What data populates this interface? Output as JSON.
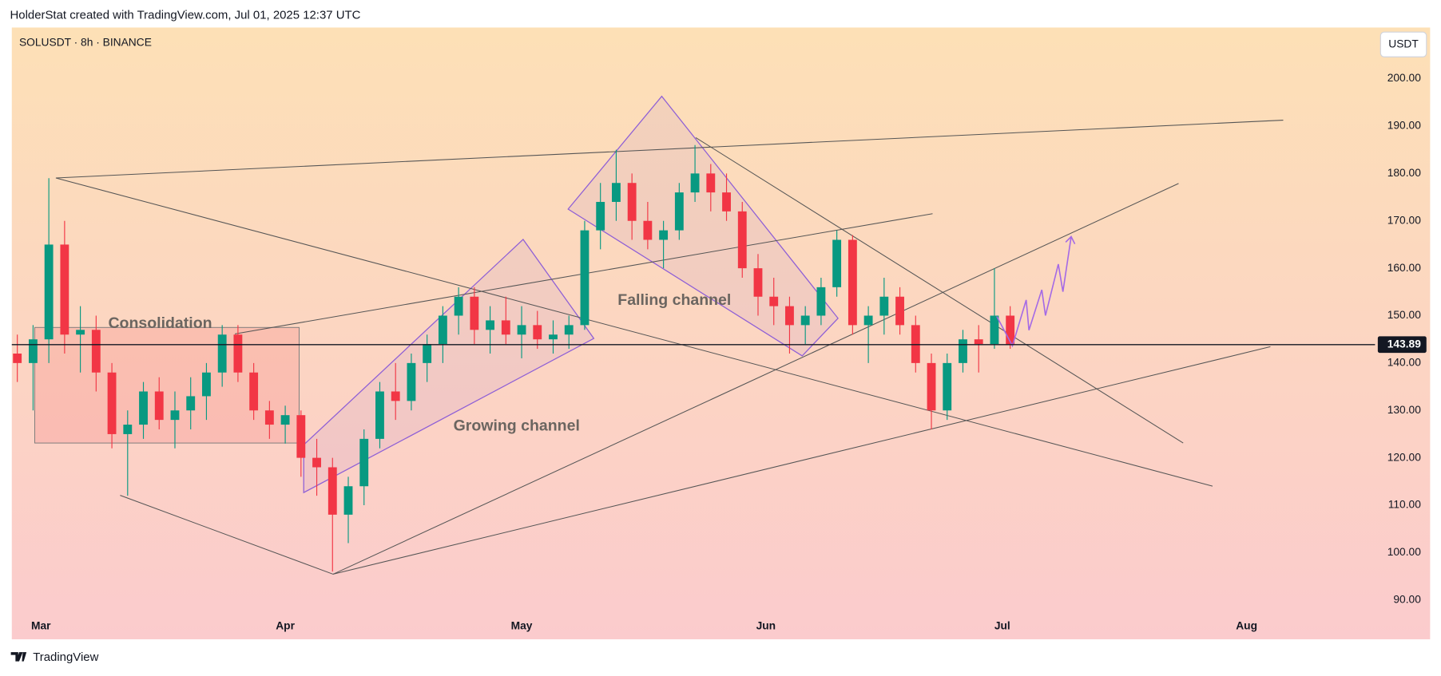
{
  "header": "HolderStat created with TradingView.com, Jul 01, 2025 12:37 UTC",
  "brand": "TradingView",
  "chart_data": {
    "type": "candlestick",
    "title": "SOLUSDT · 8h · BINANCE",
    "currency": "USDT",
    "up_color": "#089981",
    "down_color": "#f23645",
    "x": [
      -3,
      -1,
      1,
      3,
      5,
      7,
      9,
      11,
      13,
      15,
      17,
      19,
      21,
      23,
      25,
      27,
      29,
      31,
      33,
      35,
      37,
      39,
      41,
      43,
      45,
      47,
      49,
      51,
      53,
      55,
      57,
      59,
      61,
      63,
      65,
      67,
      69,
      71,
      73,
      75,
      77,
      79,
      81,
      83,
      85,
      87,
      89,
      91,
      93,
      95,
      97,
      99,
      101,
      103,
      105,
      107,
      109,
      111,
      113,
      115,
      117,
      119,
      121,
      123
    ],
    "open": [
      142,
      140,
      145,
      165,
      146,
      147,
      138,
      125,
      127,
      134,
      128,
      130,
      133,
      138,
      146,
      138,
      130,
      127,
      129,
      120,
      118,
      108,
      114,
      124,
      134,
      132,
      140,
      144,
      150,
      154,
      147,
      149,
      146,
      148,
      145,
      146,
      148,
      168,
      174,
      178,
      170,
      166,
      168,
      176,
      180,
      176,
      172,
      160,
      154,
      152,
      148,
      150,
      156,
      166,
      148,
      150,
      154,
      148,
      140,
      130,
      140,
      145,
      144,
      150
    ],
    "high": [
      146,
      148,
      179,
      170,
      152,
      150,
      140,
      130,
      136,
      137,
      134,
      137,
      140,
      148,
      148,
      140,
      132,
      131,
      130,
      124,
      120,
      116,
      126,
      136,
      140,
      142,
      146,
      152,
      156,
      156,
      152,
      154,
      152,
      151,
      149,
      150,
      170,
      178,
      185,
      180,
      174,
      170,
      178,
      186,
      182,
      180,
      174,
      163,
      158,
      154,
      152,
      158,
      168,
      167,
      152,
      158,
      156,
      150,
      142,
      142,
      147,
      148,
      160,
      152
    ],
    "low": [
      136,
      130,
      140,
      142,
      138,
      134,
      122,
      112,
      124,
      126,
      122,
      126,
      128,
      135,
      136,
      128,
      124,
      123,
      116,
      112,
      96,
      102,
      110,
      122,
      128,
      130,
      136,
      140,
      146,
      144,
      142,
      144,
      141,
      143,
      142,
      143,
      147,
      164,
      170,
      166,
      164,
      160,
      166,
      174,
      172,
      170,
      158,
      150,
      148,
      142,
      144,
      148,
      154,
      146,
      140,
      146,
      146,
      138,
      126,
      128,
      138,
      138,
      143,
      143
    ],
    "close": [
      140,
      145,
      165,
      146,
      147,
      138,
      125,
      127,
      134,
      128,
      130,
      133,
      138,
      146,
      138,
      130,
      127,
      129,
      120,
      118,
      108,
      114,
      124,
      134,
      132,
      140,
      144,
      150,
      154,
      147,
      149,
      146,
      148,
      145,
      146,
      148,
      168,
      174,
      178,
      170,
      166,
      168,
      176,
      180,
      176,
      172,
      160,
      154,
      152,
      148,
      150,
      156,
      166,
      148,
      150,
      154,
      148,
      140,
      130,
      140,
      145,
      144,
      150,
      143.89
    ],
    "last_price": 143.89,
    "xlim": [
      -3.7,
      169.3
    ],
    "xticks": [
      {
        "value": 0,
        "label": "Mar"
      },
      {
        "value": 31,
        "label": "Apr"
      },
      {
        "value": 61,
        "label": "May"
      },
      {
        "value": 92,
        "label": "Jun"
      },
      {
        "value": 122,
        "label": "Jul"
      },
      {
        "value": 153,
        "label": "Aug"
      }
    ],
    "ylim": [
      81.7,
      210.8
    ],
    "yticks": [
      {
        "value": 90,
        "label": "90.00"
      },
      {
        "value": 100,
        "label": "100.00"
      },
      {
        "value": 110,
        "label": "110.00"
      },
      {
        "value": 120,
        "label": "120.00"
      },
      {
        "value": 130,
        "label": "130.00"
      },
      {
        "value": 140,
        "label": "140.00"
      },
      {
        "value": 150,
        "label": "150.00"
      },
      {
        "value": 160,
        "label": "160.00"
      },
      {
        "value": 170,
        "label": "170.00"
      },
      {
        "value": 180,
        "label": "180.00"
      },
      {
        "value": 190,
        "label": "190.00"
      },
      {
        "value": 200,
        "label": "200.00"
      }
    ],
    "annotations": [
      "Consolidation",
      "Growing channel",
      "Falling channel"
    ]
  }
}
